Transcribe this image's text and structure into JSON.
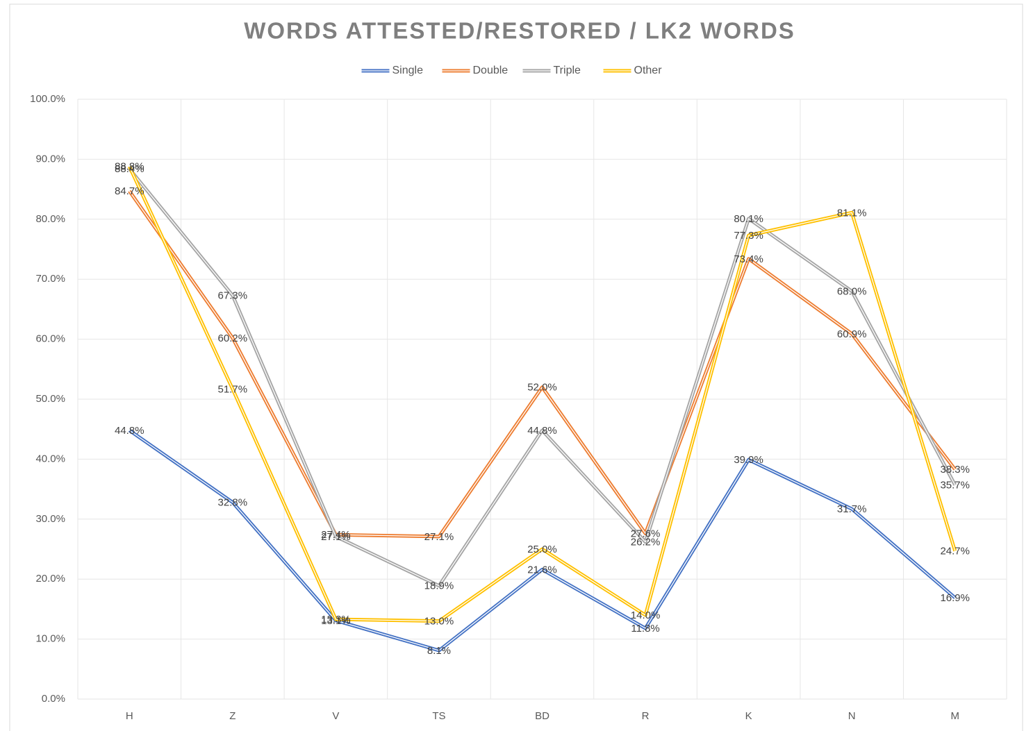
{
  "chart_data": {
    "type": "line",
    "title": "WORDS ATTESTED/RESTORED / LK2 WORDS",
    "categories": [
      "H",
      "Z",
      "V",
      "TS",
      "BD",
      "R",
      "K",
      "N",
      "M"
    ],
    "series": [
      {
        "name": "Single",
        "color": "#4472c4",
        "values": [
          44.8,
          32.8,
          13.1,
          8.1,
          21.6,
          11.8,
          39.9,
          31.7,
          16.9
        ],
        "value_labels": [
          "44.8%",
          "32.8%",
          "13.1%",
          "8.1%",
          "21.6%",
          "11.8%",
          "39.9%",
          "31.7%",
          "16.9%"
        ]
      },
      {
        "name": "Double",
        "color": "#ed7d31",
        "values": [
          84.7,
          60.2,
          27.4,
          27.1,
          52.0,
          27.6,
          73.4,
          60.9,
          38.3
        ],
        "value_labels": [
          "84.7%",
          "60.2%",
          "27.4%",
          "27.1%",
          "52.0%",
          "27.6%",
          "73.4%",
          "60.9%",
          "38.3%"
        ]
      },
      {
        "name": "Triple",
        "color": "#a5a5a5",
        "values": [
          88.4,
          67.3,
          27.1,
          18.9,
          44.8,
          26.2,
          80.1,
          68.0,
          35.7
        ],
        "value_labels": [
          "88.4%",
          "67.3%",
          "27.1%",
          "18.9%",
          "44.8%",
          "26.2%",
          "80.1%",
          "68.0%",
          "35.7%"
        ]
      },
      {
        "name": "Other",
        "color": "#ffc000",
        "values": [
          88.8,
          51.7,
          13.3,
          13.0,
          25.0,
          14.0,
          77.3,
          81.1,
          24.7
        ],
        "value_labels": [
          "88.8%",
          "51.7%",
          "13.3%",
          "13.0%",
          "25.0%",
          "14.0%",
          "77.3%",
          "81.1%",
          "24.7%"
        ]
      }
    ],
    "ylim": [
      0,
      100
    ],
    "yticks": [
      {
        "value": 0,
        "label": "0.0%"
      },
      {
        "value": 10,
        "label": "10.0%"
      },
      {
        "value": 20,
        "label": "20.0%"
      },
      {
        "value": 30,
        "label": "30.0%"
      },
      {
        "value": 40,
        "label": "40.0%"
      },
      {
        "value": 50,
        "label": "50.0%"
      },
      {
        "value": 60,
        "label": "60.0%"
      },
      {
        "value": 70,
        "label": "70.0%"
      },
      {
        "value": 80,
        "label": "80.0%"
      },
      {
        "value": 90,
        "label": "90.0%"
      },
      {
        "value": 100,
        "label": "100.0%"
      }
    ],
    "grid": true,
    "legend": "top"
  }
}
